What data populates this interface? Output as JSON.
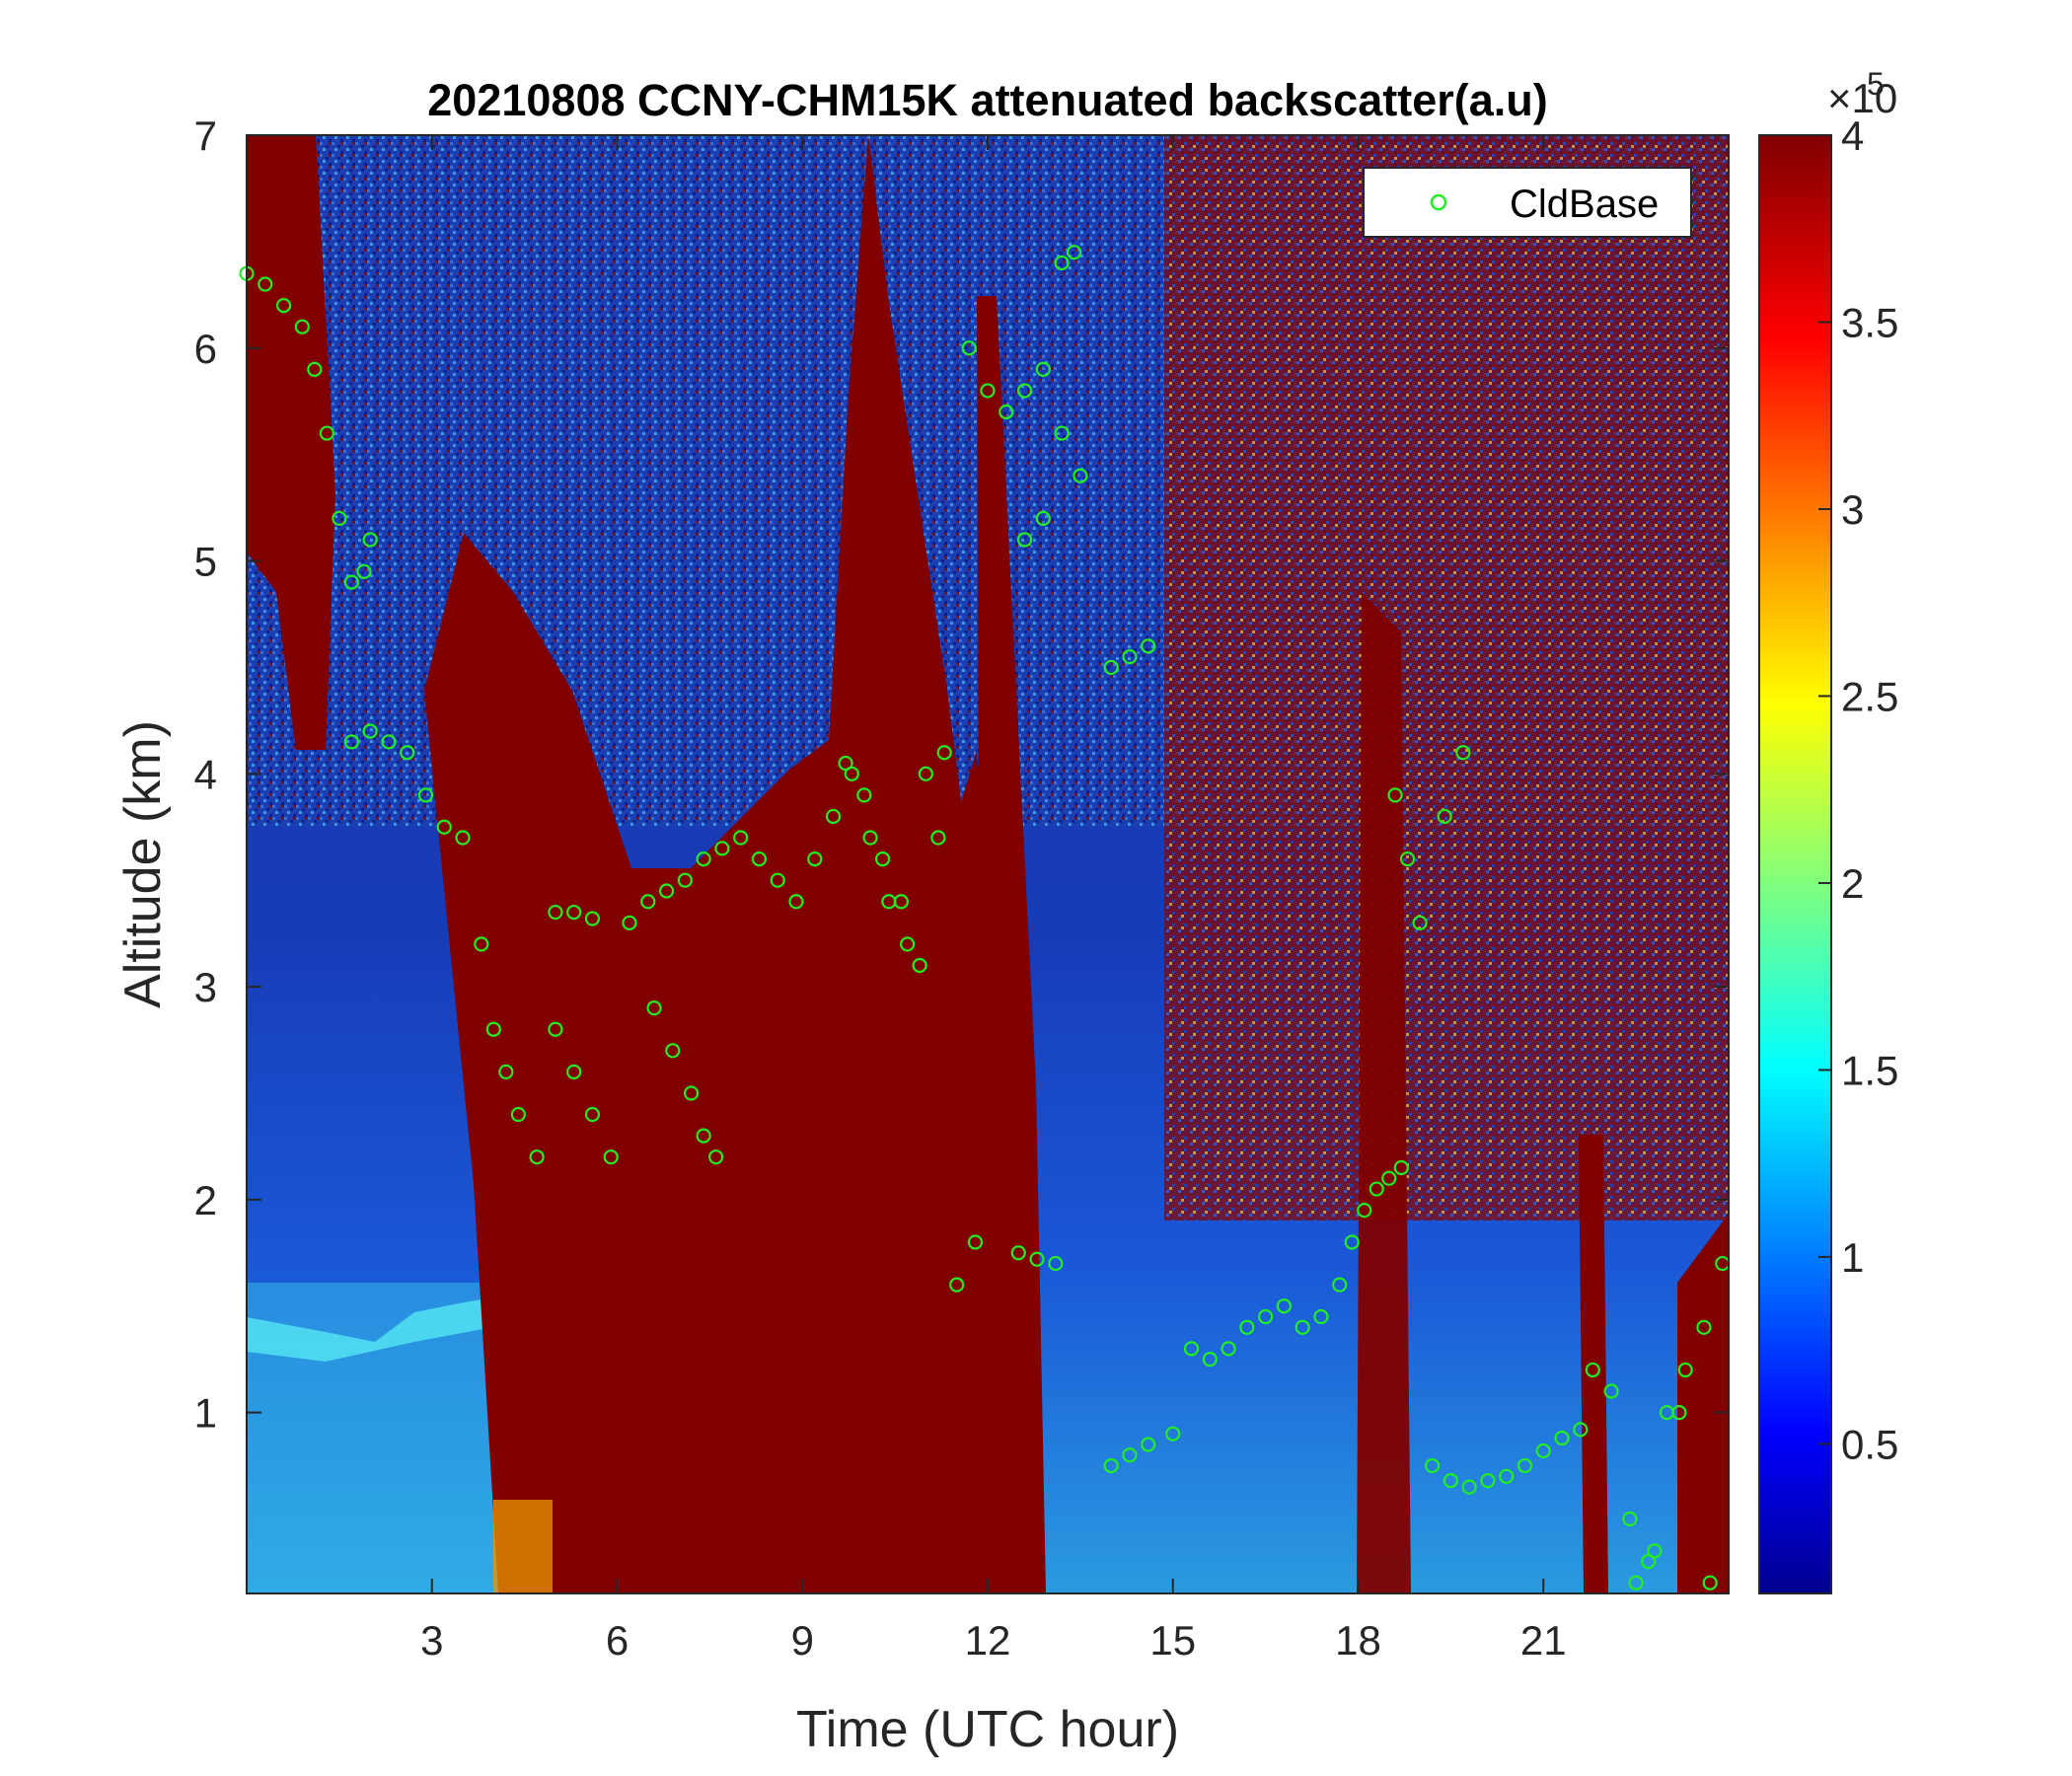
{
  "chart_data": {
    "type": "heatmap",
    "title": "20210808 CCNY-CHM15K attenuated backscatter(a.u)",
    "xlabel": "Time (UTC hour)",
    "ylabel": "Altitude (km)",
    "xlim": [
      0,
      24
    ],
    "ylim": [
      0.15,
      7
    ],
    "xticks": [
      "3",
      "6",
      "9",
      "12",
      "15",
      "18",
      "21"
    ],
    "yticks": [
      "1",
      "2",
      "3",
      "4",
      "5",
      "6",
      "7"
    ],
    "colorbar": {
      "colormap": "jet",
      "range": [
        10000,
        400000
      ],
      "ticks": [
        "0.5",
        "1",
        "1.5",
        "2",
        "2.5",
        "3",
        "3.5",
        "4"
      ],
      "multiplier": "×10",
      "exponent": "5"
    },
    "legend": {
      "location": "top-right",
      "entries": [
        "CldBase"
      ]
    },
    "series": [
      {
        "name": "CldBase",
        "marker": "circle",
        "color": "#22ee22",
        "x": [
          0.0,
          0.3,
          0.6,
          0.9,
          1.1,
          1.3,
          1.5,
          1.7,
          1.9,
          2.0,
          1.7,
          2.0,
          2.3,
          2.6,
          2.9,
          3.2,
          3.5,
          3.8,
          4.0,
          4.2,
          4.4,
          4.7,
          5.0,
          5.3,
          5.6,
          5.0,
          5.3,
          5.6,
          5.9,
          6.2,
          6.5,
          6.8,
          7.1,
          7.4,
          7.7,
          8.0,
          8.3,
          8.6,
          8.9,
          9.2,
          9.5,
          9.8,
          10.1,
          10.4,
          10.7,
          11.0,
          11.3,
          6.6,
          6.9,
          7.2,
          7.4,
          7.6,
          9.7,
          10.0,
          10.3,
          10.6,
          10.9,
          11.2,
          11.7,
          12.0,
          12.3,
          12.6,
          12.9,
          13.2,
          13.5,
          12.6,
          12.9,
          13.2,
          13.4,
          14.0,
          14.3,
          14.6,
          11.5,
          11.8,
          12.5,
          12.8,
          13.1,
          14.0,
          14.3,
          14.6,
          15.0,
          15.3,
          15.6,
          15.9,
          16.2,
          16.5,
          16.8,
          17.1,
          17.4,
          17.7,
          17.9,
          18.1,
          18.3,
          18.5,
          18.7,
          18.6,
          18.8,
          19.0,
          19.4,
          19.7,
          19.2,
          19.5,
          19.8,
          20.1,
          20.4,
          20.7,
          21.0,
          21.3,
          21.6,
          21.8,
          22.1,
          22.4,
          22.7,
          23.0,
          23.3,
          23.6,
          23.9,
          22.5,
          22.8,
          23.2,
          23.7
        ],
        "y": [
          6.35,
          6.3,
          6.2,
          6.1,
          5.9,
          5.6,
          5.2,
          4.9,
          4.95,
          5.1,
          4.15,
          4.2,
          4.15,
          4.1,
          3.9,
          3.75,
          3.7,
          3.2,
          2.8,
          2.6,
          2.4,
          2.2,
          3.35,
          3.35,
          3.32,
          2.8,
          2.6,
          2.4,
          2.2,
          3.3,
          3.4,
          3.45,
          3.5,
          3.6,
          3.65,
          3.7,
          3.6,
          3.5,
          3.4,
          3.6,
          3.8,
          4.0,
          3.7,
          3.4,
          3.2,
          4.0,
          4.1,
          2.9,
          2.7,
          2.5,
          2.3,
          2.2,
          4.05,
          3.9,
          3.6,
          3.4,
          3.1,
          3.7,
          6.0,
          5.8,
          5.7,
          5.8,
          5.9,
          5.6,
          5.4,
          5.1,
          5.2,
          6.4,
          6.45,
          4.5,
          4.55,
          4.6,
          1.6,
          1.8,
          1.75,
          1.72,
          1.7,
          0.75,
          0.8,
          0.85,
          0.9,
          1.3,
          1.25,
          1.3,
          1.4,
          1.45,
          1.5,
          1.4,
          1.45,
          1.6,
          1.8,
          1.95,
          2.05,
          2.1,
          2.15,
          3.9,
          3.6,
          3.3,
          3.8,
          4.1,
          0.75,
          0.68,
          0.65,
          0.68,
          0.7,
          0.75,
          0.82,
          0.88,
          0.92,
          1.2,
          1.1,
          0.5,
          0.3,
          1.0,
          1.2,
          1.4,
          1.7,
          0.2,
          0.35,
          1.0,
          0.2
        ]
      }
    ]
  }
}
